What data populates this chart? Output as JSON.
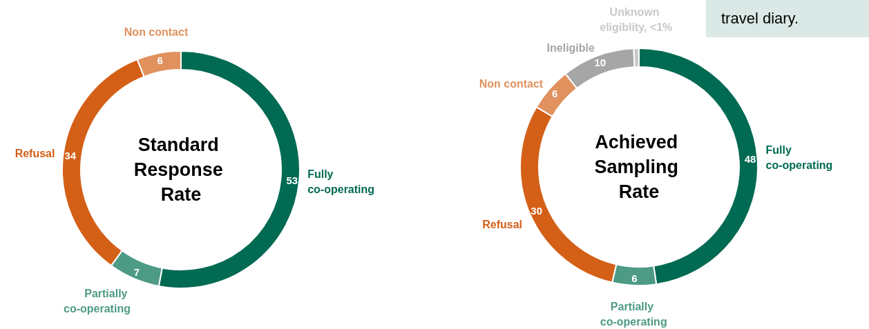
{
  "chart_data": [
    {
      "type": "donut",
      "title": "Standard Response Rate",
      "categories": [
        "Fully co-operating",
        "Partially co-operating",
        "Refusal",
        "Non contact"
      ],
      "values": [
        53,
        7,
        34,
        6
      ],
      "colors": [
        "#006a52",
        "#4d9a85",
        "#d45f17",
        "#e0915e"
      ],
      "data_labels": true
    },
    {
      "type": "donut",
      "title": "Achieved Sampling Rate",
      "categories": [
        "Fully co-operating",
        "Partially co-operating",
        "Refusal",
        "Non contact",
        "Ineligible",
        "Unknown eligiblity, <1%"
      ],
      "values": [
        48,
        6,
        30,
        6,
        10,
        0.7
      ],
      "value_labels": [
        "48",
        "6",
        "30",
        "6",
        "10",
        null
      ],
      "colors": [
        "#006a52",
        "#4d9a85",
        "#d45f17",
        "#e0915e",
        "#a6a6a6",
        "#c8c8c8"
      ],
      "annotations": [
        "travel diary."
      ]
    }
  ]
}
